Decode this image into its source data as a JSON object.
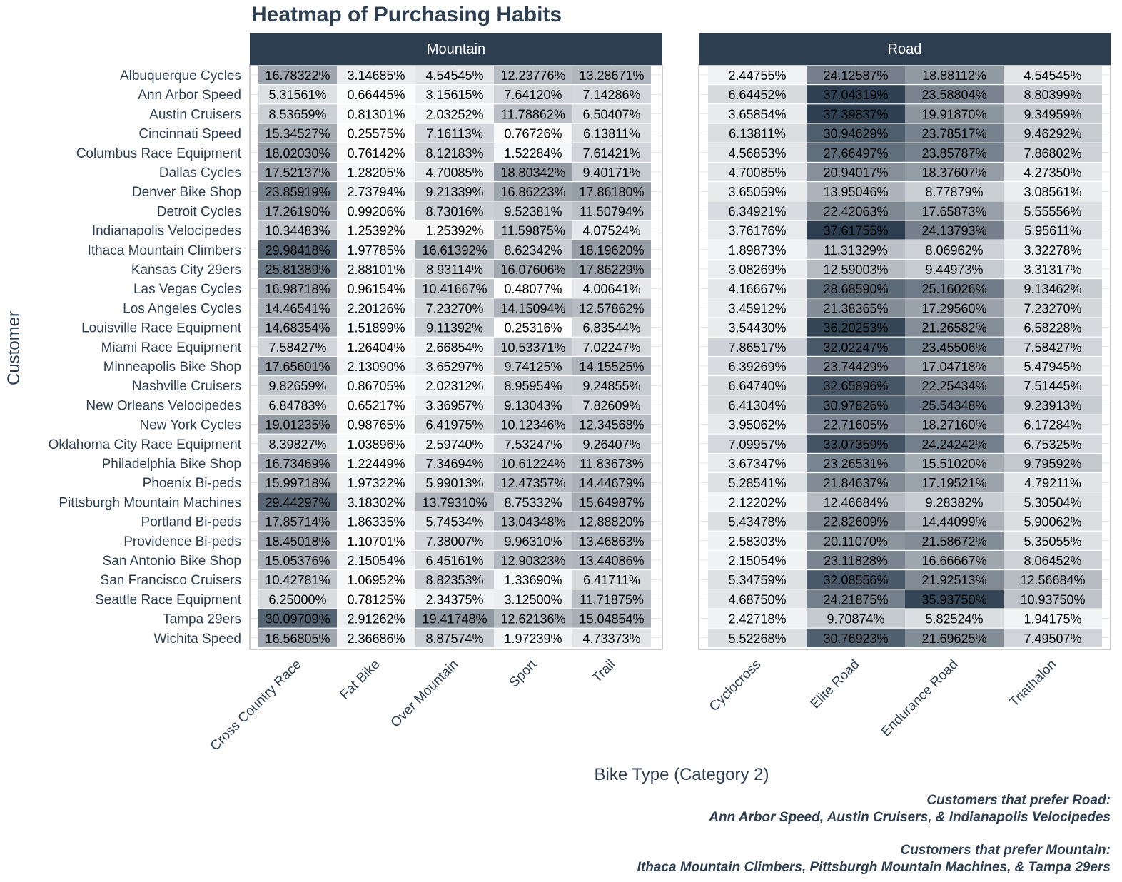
{
  "chart_data": {
    "type": "heatmap",
    "title": "Heatmap of Purchasing Habits",
    "xlabel": "Bike Type (Category 2)",
    "ylabel": "Customer",
    "grid": true,
    "colors": {
      "low": "#ffffff",
      "high": "#2c3e50",
      "strip": "#2c3e50",
      "strip_text": "#ffffff",
      "text": "#2c3e50"
    },
    "customers": [
      "Albuquerque Cycles",
      "Ann Arbor Speed",
      "Austin Cruisers",
      "Cincinnati Speed",
      "Columbus Race Equipment",
      "Dallas Cycles",
      "Denver Bike Shop",
      "Detroit Cycles",
      "Indianapolis Velocipedes",
      "Ithaca Mountain Climbers",
      "Kansas City 29ers",
      "Las Vegas Cycles",
      "Los Angeles Cycles",
      "Louisville Race Equipment",
      "Miami Race Equipment",
      "Minneapolis Bike Shop",
      "Nashville Cruisers",
      "New Orleans Velocipedes",
      "New York Cycles",
      "Oklahoma City Race Equipment",
      "Philadelphia Bike Shop",
      "Phoenix Bi-peds",
      "Pittsburgh Mountain Machines",
      "Portland Bi-peds",
      "Providence Bi-peds",
      "San Antonio Bike Shop",
      "San Francisco Cruisers",
      "Seattle Race Equipment",
      "Tampa 29ers",
      "Wichita Speed"
    ],
    "panels": [
      {
        "name": "Mountain",
        "categories": [
          "Cross Country Race",
          "Fat Bike",
          "Over Mountain",
          "Sport",
          "Trail"
        ],
        "values": [
          [
            "16.78322%",
            "3.14685%",
            "4.54545%",
            "12.23776%",
            "13.28671%"
          ],
          [
            "5.31561%",
            "0.66445%",
            "3.15615%",
            "7.64120%",
            "7.14286%"
          ],
          [
            "8.53659%",
            "0.81301%",
            "2.03252%",
            "11.78862%",
            "6.50407%"
          ],
          [
            "15.34527%",
            "0.25575%",
            "7.16113%",
            "0.76726%",
            "6.13811%"
          ],
          [
            "18.02030%",
            "0.76142%",
            "8.12183%",
            "1.52284%",
            "7.61421%"
          ],
          [
            "17.52137%",
            "1.28205%",
            "4.70085%",
            "18.80342%",
            "9.40171%"
          ],
          [
            "23.85919%",
            "2.73794%",
            "9.21339%",
            "16.86223%",
            "17.86180%"
          ],
          [
            "17.26190%",
            "0.99206%",
            "8.73016%",
            "9.52381%",
            "11.50794%"
          ],
          [
            "10.34483%",
            "1.25392%",
            "1.25392%",
            "11.59875%",
            "4.07524%"
          ],
          [
            "29.98418%",
            "1.97785%",
            "16.61392%",
            "8.62342%",
            "18.19620%"
          ],
          [
            "25.81389%",
            "2.88101%",
            "8.93114%",
            "16.07606%",
            "17.86229%"
          ],
          [
            "16.98718%",
            "0.96154%",
            "10.41667%",
            "0.48077%",
            "4.00641%"
          ],
          [
            "14.46541%",
            "2.20126%",
            "7.23270%",
            "14.15094%",
            "12.57862%"
          ],
          [
            "14.68354%",
            "1.51899%",
            "9.11392%",
            "0.25316%",
            "6.83544%"
          ],
          [
            "7.58427%",
            "1.26404%",
            "2.66854%",
            "10.53371%",
            "7.02247%"
          ],
          [
            "17.65601%",
            "2.13090%",
            "3.65297%",
            "9.74125%",
            "14.15525%"
          ],
          [
            "9.82659%",
            "0.86705%",
            "2.02312%",
            "8.95954%",
            "9.24855%"
          ],
          [
            "6.84783%",
            "0.65217%",
            "3.36957%",
            "9.13043%",
            "7.82609%"
          ],
          [
            "19.01235%",
            "0.98765%",
            "6.41975%",
            "10.12346%",
            "12.34568%"
          ],
          [
            "8.39827%",
            "1.03896%",
            "2.59740%",
            "7.53247%",
            "9.26407%"
          ],
          [
            "16.73469%",
            "1.22449%",
            "7.34694%",
            "10.61224%",
            "11.83673%"
          ],
          [
            "15.99718%",
            "1.97322%",
            "5.99013%",
            "12.47357%",
            "14.44679%"
          ],
          [
            "29.44297%",
            "3.18302%",
            "13.79310%",
            "8.75332%",
            "15.64987%"
          ],
          [
            "17.85714%",
            "1.86335%",
            "5.74534%",
            "13.04348%",
            "12.88820%"
          ],
          [
            "18.45018%",
            "1.10701%",
            "7.38007%",
            "9.96310%",
            "13.46863%"
          ],
          [
            "15.05376%",
            "2.15054%",
            "6.45161%",
            "12.90323%",
            "13.44086%"
          ],
          [
            "10.42781%",
            "1.06952%",
            "8.82353%",
            "1.33690%",
            "6.41711%"
          ],
          [
            "6.25000%",
            "0.78125%",
            "2.34375%",
            "3.12500%",
            "11.71875%"
          ],
          [
            "30.09709%",
            "2.91262%",
            "19.41748%",
            "12.62136%",
            "15.04854%"
          ],
          [
            "16.56805%",
            "2.36686%",
            "8.87574%",
            "1.97239%",
            "4.73373%"
          ]
        ]
      },
      {
        "name": "Road",
        "categories": [
          "Cyclocross",
          "Elite Road",
          "Endurance Road",
          "Triathalon"
        ],
        "values": [
          [
            "2.44755%",
            "24.12587%",
            "18.88112%",
            "4.54545%"
          ],
          [
            "6.64452%",
            "37.04319%",
            "23.58804%",
            "8.80399%"
          ],
          [
            "3.65854%",
            "37.39837%",
            "19.91870%",
            "9.34959%"
          ],
          [
            "6.13811%",
            "30.94629%",
            "23.78517%",
            "9.46292%"
          ],
          [
            "4.56853%",
            "27.66497%",
            "23.85787%",
            "7.86802%"
          ],
          [
            "4.70085%",
            "20.94017%",
            "18.37607%",
            "4.27350%"
          ],
          [
            "3.65059%",
            "13.95046%",
            "8.77879%",
            "3.08561%"
          ],
          [
            "6.34921%",
            "22.42063%",
            "17.65873%",
            "5.55556%"
          ],
          [
            "3.76176%",
            "37.61755%",
            "24.13793%",
            "5.95611%"
          ],
          [
            "1.89873%",
            "11.31329%",
            "8.06962%",
            "3.32278%"
          ],
          [
            "3.08269%",
            "12.59003%",
            "9.44973%",
            "3.31317%"
          ],
          [
            "4.16667%",
            "28.68590%",
            "25.16026%",
            "9.13462%"
          ],
          [
            "3.45912%",
            "21.38365%",
            "17.29560%",
            "7.23270%"
          ],
          [
            "3.54430%",
            "36.20253%",
            "21.26582%",
            "6.58228%"
          ],
          [
            "7.86517%",
            "32.02247%",
            "23.45506%",
            "7.58427%"
          ],
          [
            "6.39269%",
            "23.74429%",
            "17.04718%",
            "5.47945%"
          ],
          [
            "6.64740%",
            "32.65896%",
            "22.25434%",
            "7.51445%"
          ],
          [
            "6.41304%",
            "30.97826%",
            "25.54348%",
            "9.23913%"
          ],
          [
            "3.95062%",
            "22.71605%",
            "18.27160%",
            "6.17284%"
          ],
          [
            "7.09957%",
            "33.07359%",
            "24.24242%",
            "6.75325%"
          ],
          [
            "3.67347%",
            "23.26531%",
            "15.51020%",
            "9.79592%"
          ],
          [
            "5.28541%",
            "21.84637%",
            "17.19521%",
            "4.79211%"
          ],
          [
            "2.12202%",
            "12.46684%",
            "9.28382%",
            "5.30504%"
          ],
          [
            "5.43478%",
            "22.82609%",
            "14.44099%",
            "5.90062%"
          ],
          [
            "2.58303%",
            "20.11070%",
            "21.58672%",
            "5.35055%"
          ],
          [
            "2.15054%",
            "23.11828%",
            "16.66667%",
            "8.06452%"
          ],
          [
            "5.34759%",
            "32.08556%",
            "21.92513%",
            "12.56684%"
          ],
          [
            "4.68750%",
            "24.21875%",
            "35.93750%",
            "10.93750%"
          ],
          [
            "2.42718%",
            "9.70874%",
            "5.82524%",
            "1.94175%"
          ],
          [
            "5.52268%",
            "30.76923%",
            "21.69625%",
            "7.49507%"
          ]
        ]
      }
    ],
    "caption": [
      "Customers that prefer Road:",
      "Ann Arbor Speed, Austin Cruisers, & Indianapolis Velocipedes",
      "Customers that prefer Mountain:",
      "Ithaca Mountain Climbers, Pittsburgh Mountain Machines, & Tampa 29ers"
    ]
  }
}
